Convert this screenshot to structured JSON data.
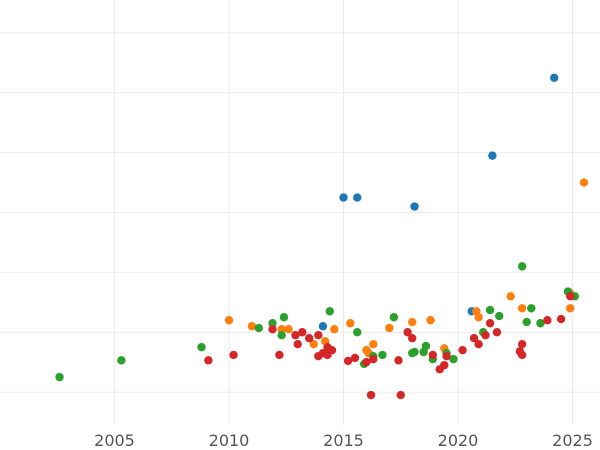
{
  "chart_data": {
    "type": "scatter",
    "title": "",
    "xlabel": "",
    "ylabel": "",
    "xlim": [
      2000.0,
      2026.2
    ],
    "ylim": [
      -0.3,
      6.8
    ],
    "x_ticks": [
      2005,
      2010,
      2015,
      2020,
      2025
    ],
    "x_tick_labels": [
      "2005",
      "2010",
      "2015",
      "2020",
      "2025"
    ],
    "y_gridlines": [
      0.25,
      1.25,
      2.25,
      3.25,
      4.25,
      5.25,
      6.25
    ],
    "grid": true,
    "legend": "none",
    "series": [
      {
        "color": "#1f77b4",
        "points": [
          [
            2014.1,
            1.35
          ],
          [
            2015.0,
            3.5
          ],
          [
            2015.6,
            3.5
          ],
          [
            2018.1,
            3.35
          ],
          [
            2020.6,
            1.6
          ],
          [
            2021.5,
            4.2
          ],
          [
            2024.2,
            5.5
          ]
        ]
      },
      {
        "color": "#ff7f0e",
        "points": [
          [
            2010.0,
            1.45
          ],
          [
            2011.0,
            1.35
          ],
          [
            2012.3,
            1.3
          ],
          [
            2012.6,
            1.3
          ],
          [
            2013.7,
            1.05
          ],
          [
            2014.2,
            1.1
          ],
          [
            2014.6,
            1.3
          ],
          [
            2015.3,
            1.4
          ],
          [
            2016.0,
            0.95
          ],
          [
            2016.1,
            0.9
          ],
          [
            2016.3,
            1.05
          ],
          [
            2017.0,
            1.32
          ],
          [
            2018.0,
            1.42
          ],
          [
            2018.8,
            1.45
          ],
          [
            2019.4,
            0.98
          ],
          [
            2020.8,
            1.6
          ],
          [
            2020.9,
            1.5
          ],
          [
            2022.3,
            1.85
          ],
          [
            2022.8,
            1.65
          ],
          [
            2024.9,
            1.65
          ],
          [
            2024.9,
            1.9
          ],
          [
            2025.5,
            3.75
          ]
        ]
      },
      {
        "color": "#2ca02c",
        "points": [
          [
            2002.6,
            0.5
          ],
          [
            2005.3,
            0.78
          ],
          [
            2008.8,
            1.0
          ],
          [
            2011.3,
            1.32
          ],
          [
            2011.9,
            1.4
          ],
          [
            2012.3,
            1.2
          ],
          [
            2012.4,
            1.5
          ],
          [
            2014.4,
            1.6
          ],
          [
            2015.6,
            1.25
          ],
          [
            2015.9,
            0.72
          ],
          [
            2016.3,
            0.85
          ],
          [
            2016.7,
            0.87
          ],
          [
            2017.2,
            1.5
          ],
          [
            2018.0,
            0.9
          ],
          [
            2018.1,
            0.92
          ],
          [
            2018.5,
            0.92
          ],
          [
            2018.6,
            1.02
          ],
          [
            2018.9,
            0.8
          ],
          [
            2019.5,
            0.9
          ],
          [
            2019.8,
            0.8
          ],
          [
            2021.1,
            1.25
          ],
          [
            2021.4,
            1.62
          ],
          [
            2021.8,
            1.52
          ],
          [
            2022.8,
            2.35
          ],
          [
            2023.0,
            1.42
          ],
          [
            2023.2,
            1.65
          ],
          [
            2023.6,
            1.4
          ],
          [
            2024.8,
            1.93
          ],
          [
            2025.1,
            1.85
          ]
        ]
      },
      {
        "color": "#d62728",
        "points": [
          [
            2009.1,
            0.78
          ],
          [
            2010.2,
            0.87
          ],
          [
            2011.9,
            1.3
          ],
          [
            2012.2,
            0.87
          ],
          [
            2012.9,
            1.2
          ],
          [
            2013.0,
            1.05
          ],
          [
            2013.2,
            1.25
          ],
          [
            2013.5,
            1.15
          ],
          [
            2013.9,
            1.2
          ],
          [
            2013.9,
            0.85
          ],
          [
            2014.1,
            0.9
          ],
          [
            2014.3,
            0.87
          ],
          [
            2014.3,
            1.0
          ],
          [
            2014.5,
            0.95
          ],
          [
            2015.2,
            0.77
          ],
          [
            2015.5,
            0.82
          ],
          [
            2016.0,
            0.75
          ],
          [
            2016.2,
            0.2
          ],
          [
            2016.3,
            0.8
          ],
          [
            2017.4,
            0.78
          ],
          [
            2017.5,
            0.2
          ],
          [
            2017.8,
            1.25
          ],
          [
            2018.0,
            1.15
          ],
          [
            2018.9,
            0.87
          ],
          [
            2019.2,
            0.63
          ],
          [
            2019.4,
            0.7
          ],
          [
            2019.5,
            0.85
          ],
          [
            2020.2,
            0.95
          ],
          [
            2020.7,
            1.15
          ],
          [
            2020.9,
            1.05
          ],
          [
            2021.2,
            1.2
          ],
          [
            2021.4,
            1.4
          ],
          [
            2021.7,
            1.25
          ],
          [
            2022.7,
            0.93
          ],
          [
            2022.8,
            1.05
          ],
          [
            2022.8,
            0.87
          ],
          [
            2023.9,
            1.45
          ],
          [
            2024.5,
            1.47
          ],
          [
            2024.9,
            1.85
          ]
        ]
      }
    ]
  }
}
